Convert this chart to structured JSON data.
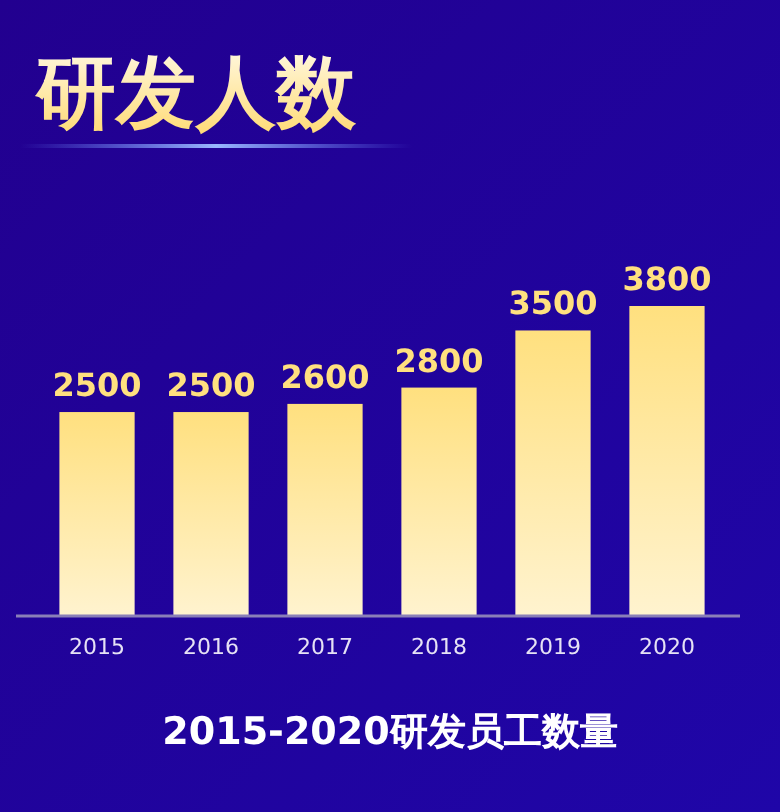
{
  "chart_data": {
    "type": "bar",
    "title": "研发人数",
    "xlabel": "2015-2020研发员工数量",
    "categories": [
      "2015",
      "2016",
      "2017",
      "2018",
      "2019",
      "2020"
    ],
    "values": [
      2500,
      2500,
      2600,
      2800,
      3500,
      3800
    ],
    "color": "#ffe07f",
    "data_labels": true
  }
}
